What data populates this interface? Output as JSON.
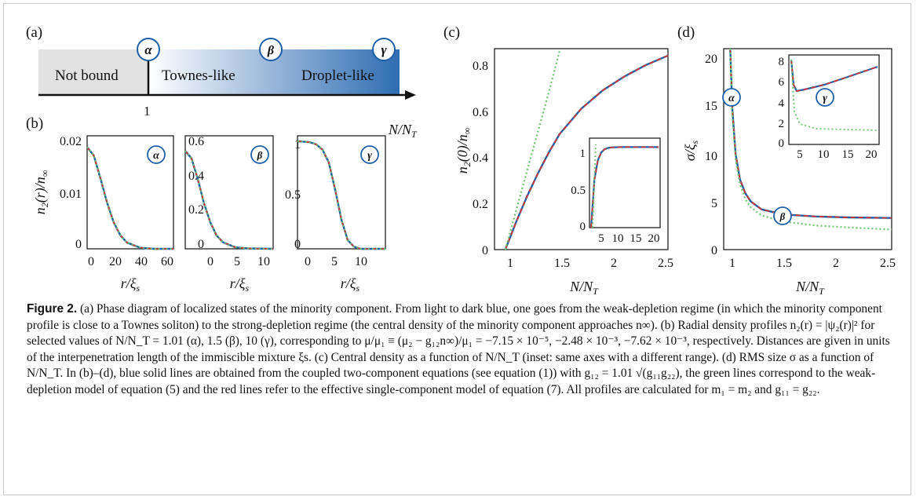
{
  "panels": {
    "a": {
      "label": "(a)",
      "regions": [
        "Not bound",
        "Townes-like",
        "Droplet-like"
      ],
      "tick": "1",
      "axis_label": "N/N_T",
      "markers": [
        "α",
        "β",
        "γ"
      ]
    },
    "b": {
      "label": "(b)",
      "ylabel": "n₂(r)/n∞",
      "xlabel": "r/ξs",
      "subplots": [
        {
          "marker": "α",
          "yticks": [
            "0.02",
            "0.01",
            "0"
          ],
          "xticks": [
            "0",
            "20",
            "40",
            "60"
          ],
          "ylim": [
            0,
            0.02
          ],
          "xlim": [
            0,
            65
          ]
        },
        {
          "marker": "β",
          "yticks": [
            "0.6",
            "0.4",
            "0.2",
            "0"
          ],
          "xticks": [
            "0",
            "5",
            "10"
          ],
          "ylim": [
            0,
            0.6
          ],
          "xlim": [
            0,
            14
          ]
        },
        {
          "marker": "γ",
          "yticks": [
            "1",
            "0.5",
            "0"
          ],
          "xticks": [
            "0",
            "5",
            "10"
          ],
          "ylim": [
            0,
            1.05
          ],
          "xlim": [
            0,
            14
          ]
        }
      ]
    },
    "c": {
      "label": "(c)",
      "ylabel": "n₂(0)/n∞",
      "xlabel": "N/N_T",
      "yticks": [
        "0",
        "0.2",
        "0.4",
        "0.6",
        "0.8"
      ],
      "xticks": [
        "1",
        "1.5",
        "2",
        "2.5"
      ],
      "inset": {
        "yticks": [
          "0",
          "0.5",
          "1"
        ],
        "xticks": [
          "5",
          "10",
          "15",
          "20"
        ]
      }
    },
    "d": {
      "label": "(d)",
      "ylabel": "σ/ξs",
      "xlabel": "N/N_T",
      "yticks": [
        "0",
        "5",
        "10",
        "15",
        "20"
      ],
      "xticks": [
        "1",
        "1.5",
        "2",
        "2.5"
      ],
      "markers": [
        "α",
        "β"
      ],
      "inset": {
        "yticks": [
          "0",
          "2",
          "4",
          "6",
          "8"
        ],
        "xticks": [
          "5",
          "10",
          "15",
          "20"
        ],
        "marker": "γ"
      }
    }
  },
  "colors": {
    "blue": "#1f5fa8",
    "red": "#e0322b",
    "green": "#6cc46c",
    "marker": "#1f5fa8"
  },
  "chart_data": [
    {
      "panel": "b-alpha",
      "type": "line",
      "xlabel": "r/ξs",
      "ylabel": "n₂(r)/n∞",
      "xlim": [
        0,
        65
      ],
      "ylim": [
        0,
        0.02
      ],
      "series": [
        {
          "x": [
            0,
            5,
            10,
            15,
            20,
            25,
            30,
            40,
            50,
            65
          ],
          "values": [
            0.018,
            0.0165,
            0.0125,
            0.0082,
            0.0047,
            0.0024,
            0.0011,
            0.0002,
            0.0,
            0.0
          ]
        }
      ]
    },
    {
      "panel": "b-beta",
      "type": "line",
      "xlabel": "r/ξs",
      "ylabel": "n₂(r)/n∞",
      "xlim": [
        0,
        14
      ],
      "ylim": [
        0,
        0.6
      ],
      "series": [
        {
          "x": [
            0,
            1,
            2,
            3,
            4,
            5,
            6,
            8,
            10,
            14
          ],
          "values": [
            0.52,
            0.48,
            0.37,
            0.24,
            0.14,
            0.07,
            0.035,
            0.008,
            0.002,
            0.0
          ]
        }
      ]
    },
    {
      "panel": "b-gamma",
      "type": "line",
      "xlabel": "r/ξs",
      "ylabel": "n₂(r)/n∞",
      "xlim": [
        0,
        14
      ],
      "ylim": [
        0,
        1.05
      ],
      "series": [
        {
          "x": [
            0,
            2,
            3,
            4,
            5,
            6,
            7,
            8,
            9,
            10,
            14
          ],
          "values": [
            1.0,
            0.99,
            0.97,
            0.92,
            0.8,
            0.55,
            0.27,
            0.08,
            0.02,
            0.0,
            0.0
          ]
        }
      ]
    },
    {
      "panel": "c",
      "type": "line",
      "xlabel": "N/N_T",
      "ylabel": "n₂(0)/n∞",
      "xlim": [
        0.9,
        2.5
      ],
      "ylim": [
        0,
        0.87
      ],
      "series": [
        {
          "x": [
            1.0,
            1.1,
            1.2,
            1.3,
            1.4,
            1.5,
            1.7,
            1.9,
            2.1,
            2.3,
            2.5
          ],
          "values": [
            0.0,
            0.12,
            0.23,
            0.33,
            0.42,
            0.5,
            0.61,
            0.69,
            0.75,
            0.8,
            0.84
          ]
        },
        {
          "x": [
            1.0,
            1.2,
            1.4,
            1.5
          ],
          "values": [
            0.0,
            0.34,
            0.68,
            0.86
          ]
        }
      ]
    },
    {
      "panel": "d",
      "type": "line",
      "xlabel": "N/N_T",
      "ylabel": "σ/ξs",
      "xlim": [
        0.95,
        2.5
      ],
      "ylim": [
        0,
        20
      ],
      "series": [
        {
          "x": [
            1.01,
            1.03,
            1.06,
            1.1,
            1.15,
            1.2,
            1.3,
            1.5,
            1.8,
            2.1,
            2.5
          ],
          "values": [
            20,
            14,
            9.5,
            7.0,
            5.6,
            4.8,
            4.0,
            3.5,
            3.3,
            3.2,
            3.15
          ]
        },
        {
          "x": [
            1.01,
            1.03,
            1.06,
            1.1,
            1.15,
            1.2,
            1.3,
            1.5,
            1.8,
            2.1,
            2.5
          ],
          "values": [
            20,
            13.5,
            9.0,
            6.5,
            5.0,
            4.2,
            3.4,
            2.8,
            2.4,
            2.2,
            2.0
          ]
        }
      ]
    }
  ],
  "caption": {
    "bold": "Figure 2.",
    "text": " (a) Phase diagram of localized states of the minority component. From light to dark blue, one goes from the weak-depletion regime (in which the minority component profile is close to a Townes soliton) to the strong-depletion regime (the central density of the minority component approaches n∞). (b) Radial density profiles n₂(r) = |ψ₂(r)|² for selected values of N/N_T = 1.01 (α), 1.5 (β), 10 (γ), corresponding to μ/μ₁ ≡ (μ₂ − g₁₂n∞)/μ₁ = −7.15 × 10⁻⁵, −2.48 × 10⁻³, −7.62 × 10⁻³, respectively. Distances are given in units of the interpenetration length of the immiscible mixture ξs. (c) Central density as a function of N/N_T (inset: same axes with a different range). (d) RMS size σ as a function of N/N_T. In (b)–(d), blue solid lines are obtained from the coupled two-component equations (see equation (1)) with g₁₂ = 1.01 √(g₁₁g₂₂), the green lines correspond to the weak-depletion model of equation (5) and the red lines refer to the effective single-component model of equation (7). All profiles are calculated for m₁ = m₂ and g₁₁ = g₂₂."
  }
}
